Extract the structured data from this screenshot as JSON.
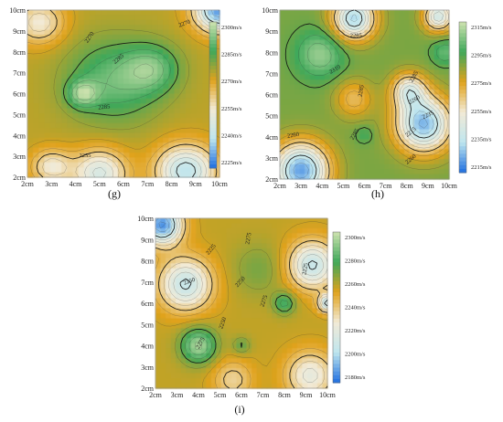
{
  "colors": {
    "colormap": [
      "#1f6fe0",
      "#bfe6ee",
      "#f2ead6",
      "#e0a21c",
      "#3fa85a",
      "#cfe3b0"
    ],
    "contour": "#222222",
    "contour_bold": "#6b3b10"
  },
  "chart_data": [
    {
      "type": "heatmap",
      "panel": "(g)",
      "xlabel": "",
      "ylabel": "",
      "x_ticks": [
        "2cm",
        "3cm",
        "4cm",
        "5cm",
        "6cm",
        "7cm",
        "8cm",
        "9cm",
        "10cm"
      ],
      "y_ticks": [
        "2cm",
        "3cm",
        "4cm",
        "5cm",
        "6cm",
        "7cm",
        "8cm",
        "9cm",
        "10cm"
      ],
      "xlim": [
        2,
        10
      ],
      "ylim": [
        2,
        10
      ],
      "colorbar": {
        "ticks": [
          "2300m/s",
          "2285m/s",
          "2270m/s",
          "2255m/s",
          "2240m/s",
          "2225m/s"
        ],
        "range": [
          2220,
          2310
        ]
      },
      "contour_labels": [
        "2270",
        "2270",
        "2285",
        "2285",
        "2255"
      ],
      "peaks": [
        {
          "x": 5.6,
          "y": 6.6,
          "v": 2298,
          "s": 1.9
        },
        {
          "x": 7.2,
          "y": 7.2,
          "v": 2296,
          "s": 1.1
        },
        {
          "x": 4.3,
          "y": 6.0,
          "v": 2300,
          "s": 0.6
        },
        {
          "x": 2.5,
          "y": 9.4,
          "v": 2255,
          "s": 1.0
        },
        {
          "x": 10,
          "y": 10,
          "v": 2225,
          "s": 1.0
        },
        {
          "x": 5.0,
          "y": 2.2,
          "v": 2246,
          "s": 1.1
        },
        {
          "x": 8.6,
          "y": 2.3,
          "v": 2238,
          "s": 1.2
        },
        {
          "x": 3.0,
          "y": 2.5,
          "v": 2255,
          "s": 0.8
        }
      ],
      "base": 2278
    },
    {
      "type": "heatmap",
      "panel": "(h)",
      "xlabel": "",
      "ylabel": "",
      "x_ticks": [
        "2cm",
        "3cm",
        "4cm",
        "5cm",
        "6cm",
        "7cm",
        "8cm",
        "9cm",
        "10cm"
      ],
      "y_ticks": [
        "2cm",
        "3cm",
        "4cm",
        "5cm",
        "6cm",
        "7cm",
        "8cm",
        "9cm",
        "10cm"
      ],
      "xlim": [
        2,
        10
      ],
      "ylim": [
        2,
        10
      ],
      "colorbar": {
        "ticks": [
          "2315m/s",
          "2295m/s",
          "2275m/s",
          "2255m/s",
          "2235m/s",
          "2215m/s"
        ],
        "range": [
          2210,
          2320
        ]
      },
      "contour_labels": [
        "2285",
        "2310",
        "2285",
        "2285",
        "2260",
        "2235",
        "2215",
        "2260",
        "2285",
        "2260"
      ],
      "peaks": [
        {
          "x": 3.9,
          "y": 7.9,
          "v": 2312,
          "s": 1.1
        },
        {
          "x": 9.8,
          "y": 8.0,
          "v": 2305,
          "s": 0.6
        },
        {
          "x": 5.5,
          "y": 9.6,
          "v": 2228,
          "s": 1.0
        },
        {
          "x": 9.5,
          "y": 9.7,
          "v": 2238,
          "s": 0.7
        },
        {
          "x": 8.8,
          "y": 4.6,
          "v": 2222,
          "s": 1.3
        },
        {
          "x": 8.1,
          "y": 6.2,
          "v": 2248,
          "s": 0.8
        },
        {
          "x": 3.0,
          "y": 2.4,
          "v": 2218,
          "s": 1.3
        },
        {
          "x": 5.5,
          "y": 5.8,
          "v": 2268,
          "s": 0.9
        },
        {
          "x": 6.0,
          "y": 4.1,
          "v": 2300,
          "s": 0.4
        }
      ],
      "base": 2290
    },
    {
      "type": "heatmap",
      "panel": "(i)",
      "xlabel": "",
      "ylabel": "",
      "x_ticks": [
        "2cm",
        "3cm",
        "4cm",
        "5cm",
        "6cm",
        "7cm",
        "8cm",
        "9cm",
        "10cm"
      ],
      "y_ticks": [
        "2cm",
        "3cm",
        "4cm",
        "5cm",
        "6cm",
        "7cm",
        "8cm",
        "9cm",
        "10cm"
      ],
      "xlim": [
        2,
        10
      ],
      "ylim": [
        2,
        10
      ],
      "colorbar": {
        "ticks": [
          "2300m/s",
          "2280m/s",
          "2260m/s",
          "2240m/s",
          "2220m/s",
          "2200m/s",
          "2180m/s"
        ],
        "range": [
          2175,
          2305
        ]
      },
      "contour_labels": [
        "2225",
        "2250",
        "2275",
        "2250",
        "2275",
        "2275",
        "2250",
        "2225"
      ],
      "peaks": [
        {
          "x": 4.0,
          "y": 4.0,
          "v": 2300,
          "s": 0.8
        },
        {
          "x": 6.0,
          "y": 4.0,
          "v": 2275,
          "s": 0.4
        },
        {
          "x": 8.0,
          "y": 6.0,
          "v": 2285,
          "s": 0.5
        },
        {
          "x": 6.8,
          "y": 7.6,
          "v": 2270,
          "s": 1.2
        },
        {
          "x": 2.3,
          "y": 9.7,
          "v": 2180,
          "s": 0.9
        },
        {
          "x": 3.4,
          "y": 6.9,
          "v": 2205,
          "s": 1.2
        },
        {
          "x": 9.3,
          "y": 7.8,
          "v": 2205,
          "s": 1.1
        },
        {
          "x": 9.2,
          "y": 2.6,
          "v": 2220,
          "s": 1.1
        },
        {
          "x": 10,
          "y": 6.0,
          "v": 2200,
          "s": 0.4
        },
        {
          "x": 5.6,
          "y": 2.4,
          "v": 2235,
          "s": 0.9
        }
      ],
      "base": 2258
    }
  ]
}
